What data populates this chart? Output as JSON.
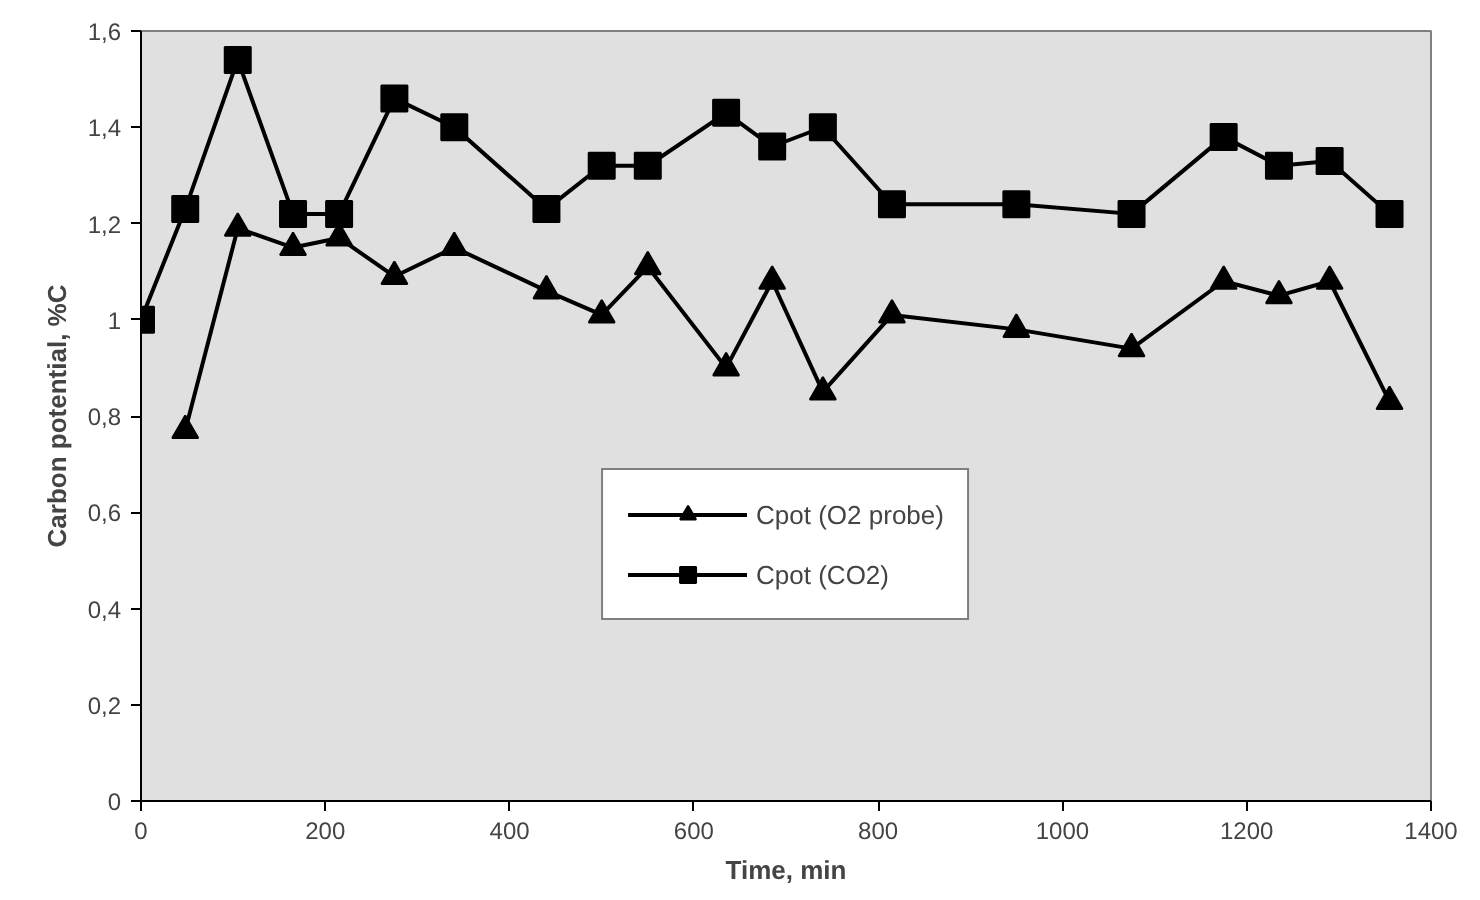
{
  "chart_data": {
    "type": "line",
    "xlabel": "Time, min",
    "ylabel": "Carbon potential, %C",
    "xlim": [
      0,
      1400
    ],
    "xticks": [
      0,
      200,
      400,
      600,
      800,
      1000,
      1200,
      1400
    ],
    "ylim": [
      0,
      1.6
    ],
    "yticks": [
      0,
      {
        "value": 0.2,
        "label": "0,2"
      },
      {
        "value": 0.4,
        "label": "0,4"
      },
      {
        "value": 0.6,
        "label": "0,6"
      },
      {
        "value": 0.8,
        "label": "0,8"
      },
      1,
      {
        "value": 1.2,
        "label": "1,2"
      },
      {
        "value": 1.4,
        "label": "1,4"
      },
      {
        "value": 1.6,
        "label": "1,6"
      }
    ],
    "grid": false,
    "legend": "bottom",
    "line_style": "solid",
    "series": [
      {
        "name": "Cpot (O2 probe)",
        "color": "#000000",
        "marker": "triangle",
        "x": [
          48,
          105,
          165,
          215,
          275,
          340,
          440,
          500,
          550,
          635,
          685,
          740,
          815,
          950,
          1075,
          1175,
          1235,
          1290,
          1355
        ],
        "values": [
          0.77,
          1.19,
          1.15,
          1.17,
          1.09,
          1.15,
          1.06,
          1.01,
          1.11,
          0.9,
          1.08,
          0.85,
          1.01,
          0.98,
          0.94,
          1.08,
          1.05,
          1.08,
          0.83
        ]
      },
      {
        "name": "Cpot (CO2)",
        "color": "#000000",
        "marker": "square",
        "x": [
          0,
          48,
          105,
          165,
          215,
          275,
          340,
          440,
          500,
          550,
          635,
          685,
          740,
          815,
          950,
          1075,
          1175,
          1235,
          1290,
          1355
        ],
        "values": [
          1.0,
          1.23,
          1.54,
          1.22,
          1.22,
          1.46,
          1.4,
          1.23,
          1.32,
          1.32,
          1.43,
          1.36,
          1.4,
          1.24,
          1.24,
          1.22,
          1.38,
          1.32,
          1.33,
          1.22
        ]
      }
    ]
  }
}
